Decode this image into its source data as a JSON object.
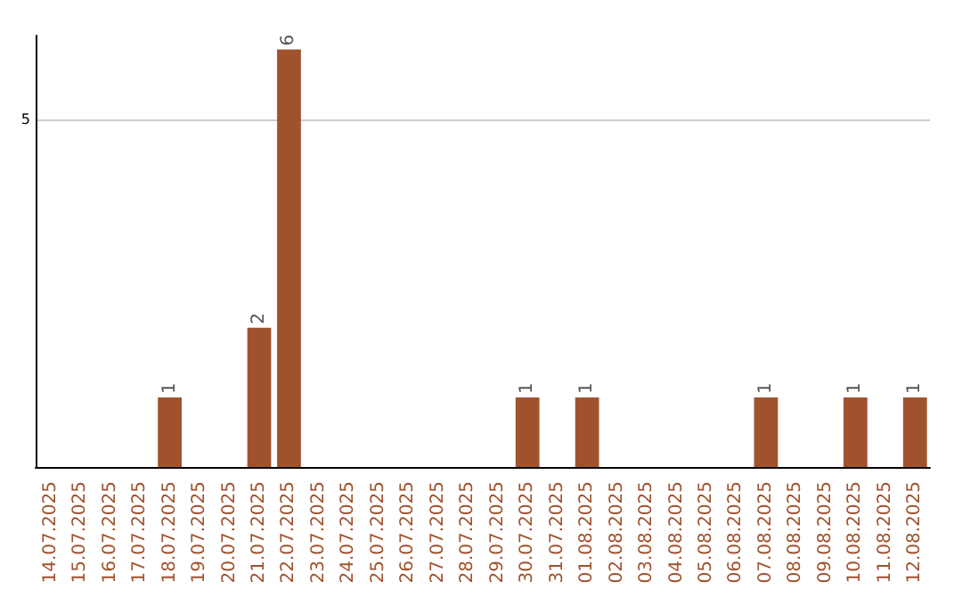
{
  "chart_data": {
    "type": "bar",
    "categories": [
      "14.07.2025",
      "15.07.2025",
      "16.07.2025",
      "17.07.2025",
      "18.07.2025",
      "19.07.2025",
      "20.07.2025",
      "21.07.2025",
      "22.07.2025",
      "23.07.2025",
      "24.07.2025",
      "25.07.2025",
      "26.07.2025",
      "27.07.2025",
      "28.07.2025",
      "29.07.2025",
      "30.07.2025",
      "31.07.2025",
      "01.08.2025",
      "02.08.2025",
      "03.08.2025",
      "04.08.2025",
      "05.08.2025",
      "06.08.2025",
      "07.08.2025",
      "08.08.2025",
      "09.08.2025",
      "10.08.2025",
      "11.08.2025",
      "12.08.2025"
    ],
    "values": [
      null,
      null,
      null,
      null,
      1,
      null,
      null,
      2,
      6,
      null,
      null,
      null,
      null,
      null,
      null,
      null,
      1,
      null,
      1,
      null,
      null,
      null,
      null,
      null,
      1,
      null,
      null,
      1,
      null,
      1
    ],
    "color": "#a0522d",
    "ylim": [
      0,
      6.2
    ],
    "yticks": [
      {
        "value": 0,
        "label": null
      },
      5
    ],
    "grid": "y",
    "data_labels": true
  }
}
